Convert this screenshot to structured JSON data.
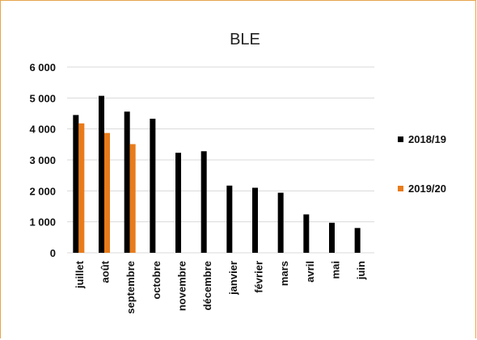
{
  "chart_data": {
    "type": "bar",
    "title": "BLE",
    "xlabel": "",
    "ylabel": "",
    "ylim": [
      0,
      6000
    ],
    "yticks": [
      0,
      1000,
      2000,
      3000,
      4000,
      5000,
      6000
    ],
    "ytick_labels": [
      "0",
      "1 000",
      "2 000",
      "3 000",
      "4 000",
      "5 000",
      "6 000"
    ],
    "grid": true,
    "legend_position": "right",
    "categories": [
      "juillet",
      "août",
      "septembre",
      "octobre",
      "novembre",
      "décembre",
      "janvier",
      "février",
      "mars",
      "avril",
      "mai",
      "juin"
    ],
    "series": [
      {
        "name": "2018/19",
        "color": "#000000",
        "values": [
          4450,
          5070,
          4560,
          4330,
          3230,
          3280,
          2170,
          2100,
          1940,
          1240,
          970,
          800
        ]
      },
      {
        "name": "2019/20",
        "color": "#E97B1A",
        "values": [
          4180,
          3870,
          3510,
          null,
          null,
          null,
          null,
          null,
          null,
          null,
          null,
          null
        ]
      }
    ]
  }
}
